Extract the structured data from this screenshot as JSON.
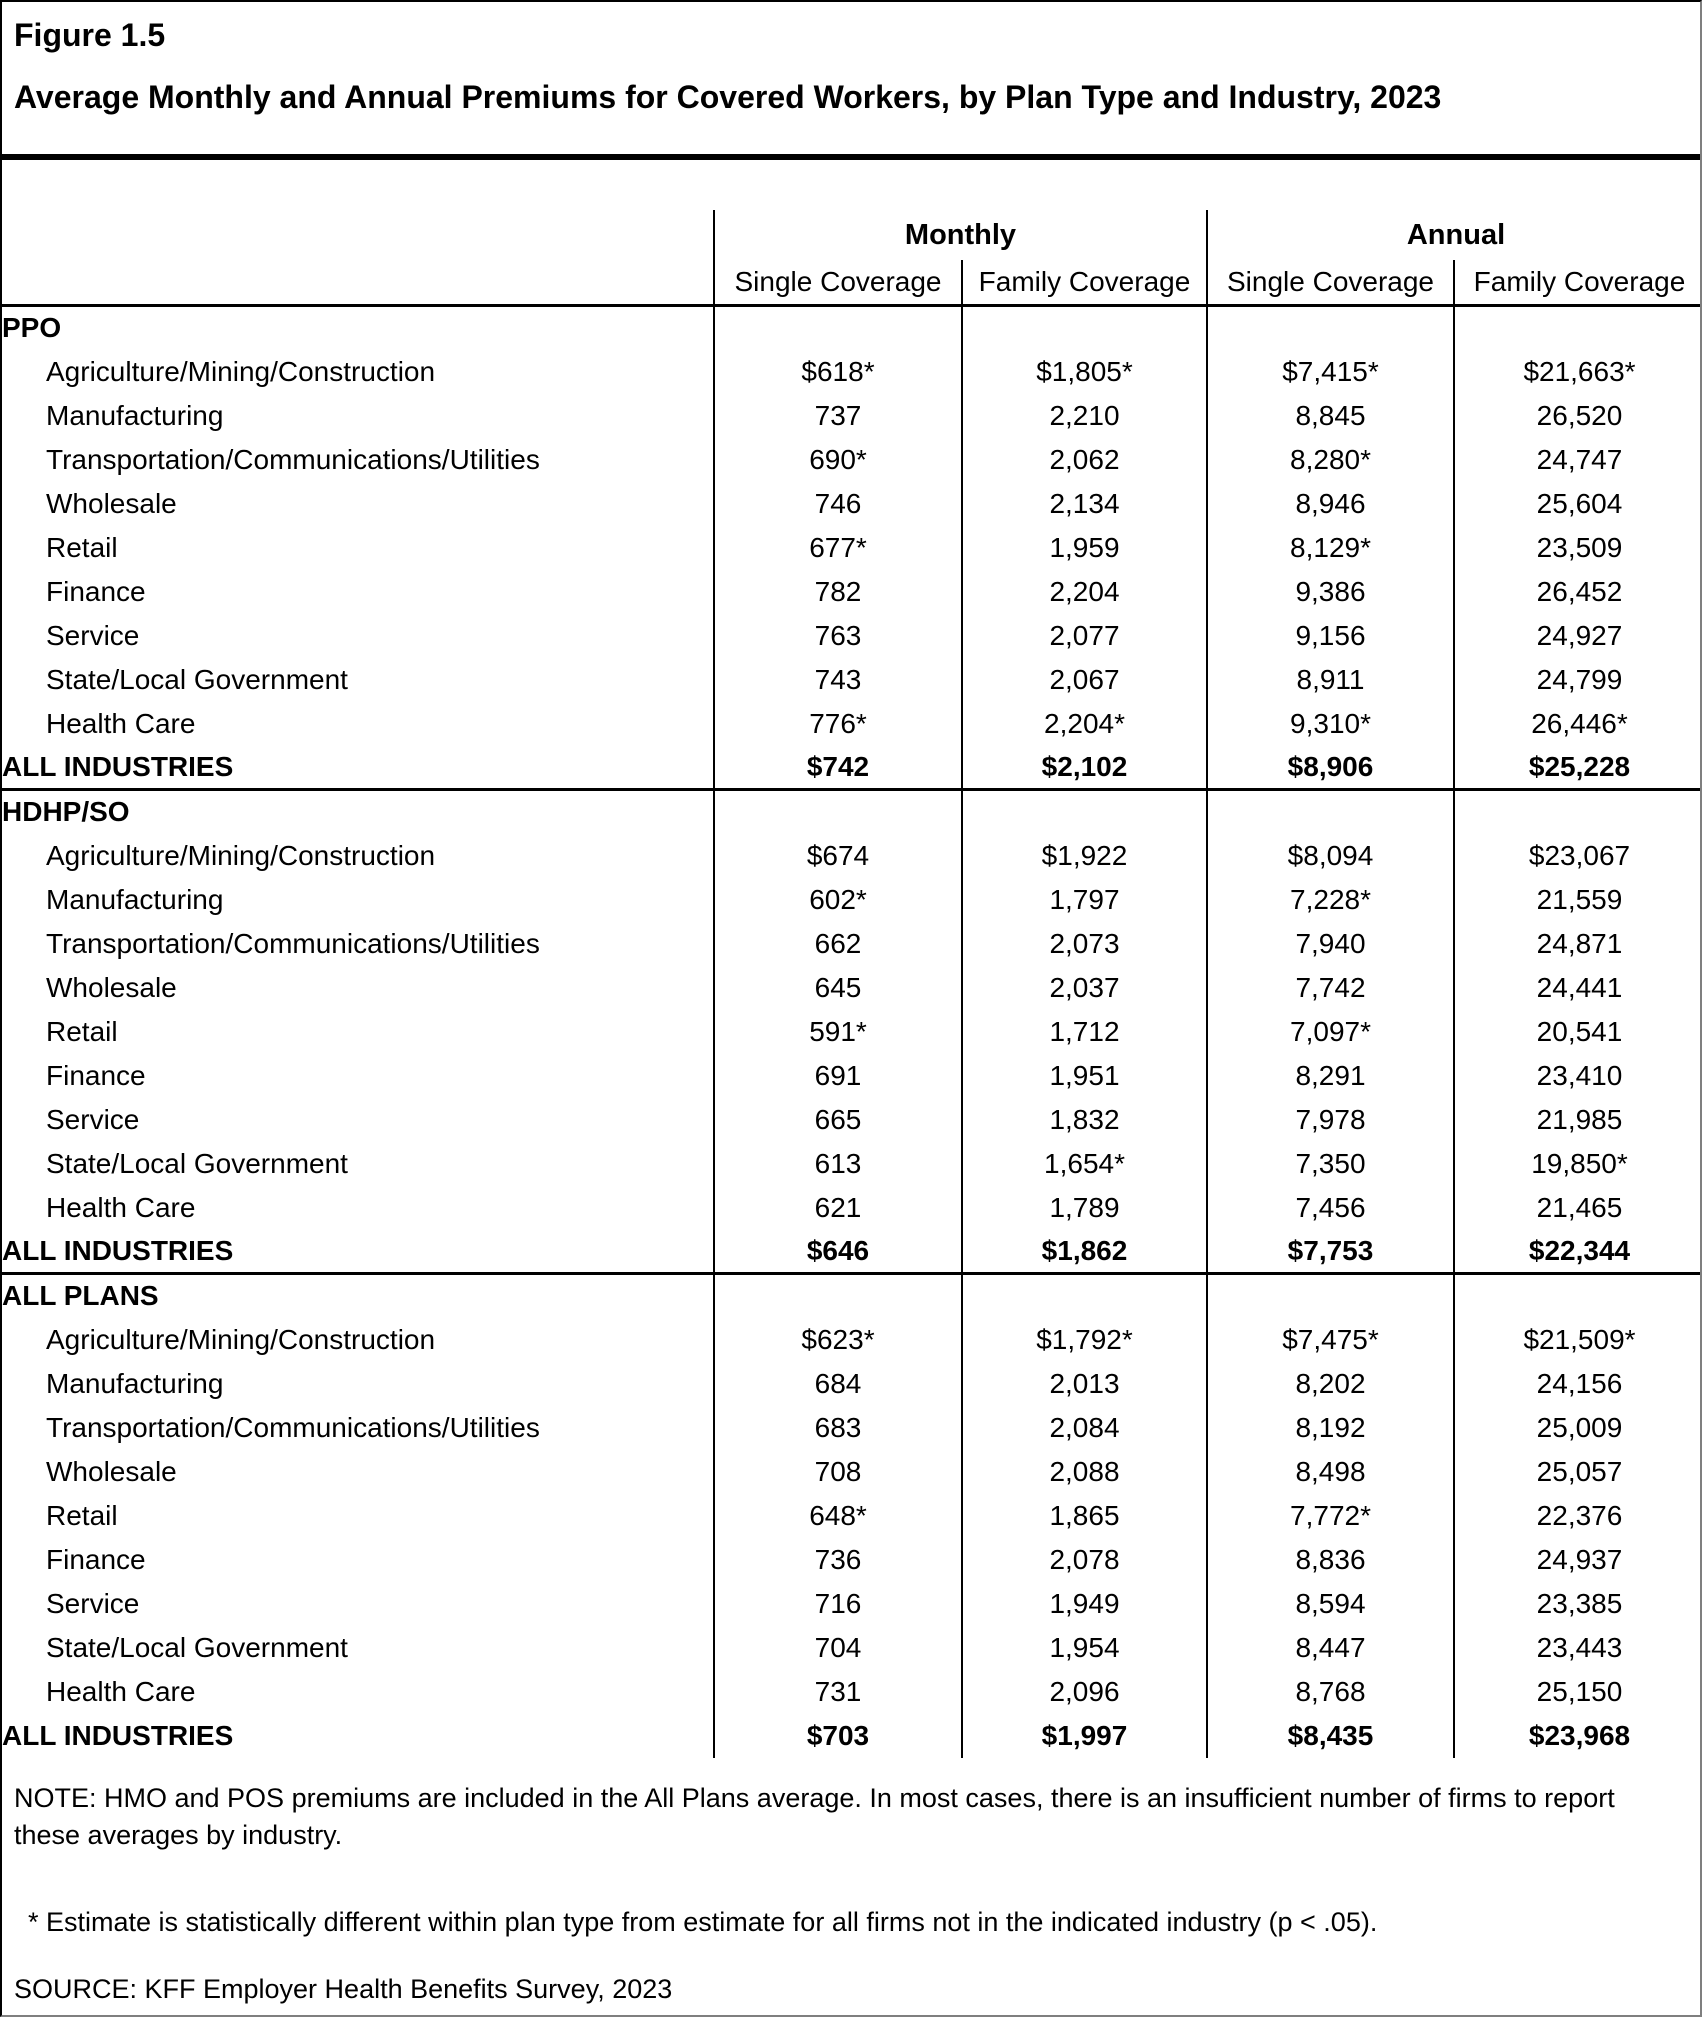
{
  "figure": {
    "label": "Figure 1.5",
    "title": "Average Monthly and Annual Premiums for Covered Workers, by Plan Type and Industry, 2023"
  },
  "table": {
    "col_groups": [
      {
        "label": "Monthly"
      },
      {
        "label": "Annual"
      }
    ],
    "sub_headers": [
      "Single Coverage",
      "Family Coverage",
      "Single Coverage",
      "Family Coverage"
    ],
    "sections": [
      {
        "name": "PPO",
        "rows": [
          {
            "label": "Agriculture/Mining/Construction",
            "values": [
              "$618*",
              "$1,805*",
              "$7,415*",
              "$21,663*"
            ]
          },
          {
            "label": "Manufacturing",
            "values": [
              "737",
              "2,210",
              "8,845",
              "26,520"
            ]
          },
          {
            "label": "Transportation/Communications/Utilities",
            "values": [
              "690*",
              "2,062",
              "8,280*",
              "24,747"
            ]
          },
          {
            "label": "Wholesale",
            "values": [
              "746",
              "2,134",
              "8,946",
              "25,604"
            ]
          },
          {
            "label": "Retail",
            "values": [
              "677*",
              "1,959",
              "8,129*",
              "23,509"
            ]
          },
          {
            "label": "Finance",
            "values": [
              "782",
              "2,204",
              "9,386",
              "26,452"
            ]
          },
          {
            "label": "Service",
            "values": [
              "763",
              "2,077",
              "9,156",
              "24,927"
            ]
          },
          {
            "label": "State/Local Government",
            "values": [
              "743",
              "2,067",
              "8,911",
              "24,799"
            ]
          },
          {
            "label": "Health Care",
            "values": [
              "776*",
              "2,204*",
              "9,310*",
              "26,446*"
            ]
          }
        ],
        "total": {
          "label": "ALL INDUSTRIES",
          "values": [
            "$742",
            "$2,102",
            "$8,906",
            "$25,228"
          ]
        }
      },
      {
        "name": "HDHP/SO",
        "rows": [
          {
            "label": "Agriculture/Mining/Construction",
            "values": [
              "$674",
              "$1,922",
              "$8,094",
              "$23,067"
            ]
          },
          {
            "label": "Manufacturing",
            "values": [
              "602*",
              "1,797",
              "7,228*",
              "21,559"
            ]
          },
          {
            "label": "Transportation/Communications/Utilities",
            "values": [
              "662",
              "2,073",
              "7,940",
              "24,871"
            ]
          },
          {
            "label": "Wholesale",
            "values": [
              "645",
              "2,037",
              "7,742",
              "24,441"
            ]
          },
          {
            "label": "Retail",
            "values": [
              "591*",
              "1,712",
              "7,097*",
              "20,541"
            ]
          },
          {
            "label": "Finance",
            "values": [
              "691",
              "1,951",
              "8,291",
              "23,410"
            ]
          },
          {
            "label": "Service",
            "values": [
              "665",
              "1,832",
              "7,978",
              "21,985"
            ]
          },
          {
            "label": "State/Local Government",
            "values": [
              "613",
              "1,654*",
              "7,350",
              "19,850*"
            ]
          },
          {
            "label": "Health Care",
            "values": [
              "621",
              "1,789",
              "7,456",
              "21,465"
            ]
          }
        ],
        "total": {
          "label": "ALL INDUSTRIES",
          "values": [
            "$646",
            "$1,862",
            "$7,753",
            "$22,344"
          ]
        }
      },
      {
        "name": "ALL PLANS",
        "rows": [
          {
            "label": "Agriculture/Mining/Construction",
            "values": [
              "$623*",
              "$1,792*",
              "$7,475*",
              "$21,509*"
            ]
          },
          {
            "label": "Manufacturing",
            "values": [
              "684",
              "2,013",
              "8,202",
              "24,156"
            ]
          },
          {
            "label": "Transportation/Communications/Utilities",
            "values": [
              "683",
              "2,084",
              "8,192",
              "25,009"
            ]
          },
          {
            "label": "Wholesale",
            "values": [
              "708",
              "2,088",
              "8,498",
              "25,057"
            ]
          },
          {
            "label": "Retail",
            "values": [
              "648*",
              "1,865",
              "7,772*",
              "22,376"
            ]
          },
          {
            "label": "Finance",
            "values": [
              "736",
              "2,078",
              "8,836",
              "24,937"
            ]
          },
          {
            "label": "Service",
            "values": [
              "716",
              "1,949",
              "8,594",
              "23,385"
            ]
          },
          {
            "label": "State/Local Government",
            "values": [
              "704",
              "1,954",
              "8,447",
              "23,443"
            ]
          },
          {
            "label": "Health Care",
            "values": [
              "731",
              "2,096",
              "8,768",
              "25,150"
            ]
          }
        ],
        "total": {
          "label": "ALL INDUSTRIES",
          "values": [
            "$703",
            "$1,997",
            "$8,435",
            "$23,968"
          ]
        }
      }
    ]
  },
  "notes": {
    "note": "NOTE: HMO and POS premiums are included in the All Plans average. In most cases, there is an insufficient number of firms to report these averages by industry.",
    "asterisk": "* Estimate is statistically different within plan type from estimate for all firms not in the indicated industry (p < .05).",
    "source": "SOURCE: KFF Employer Health Benefits Survey, 2023"
  },
  "colors": {
    "text": "#000000",
    "background": "#ffffff",
    "rule": "#000000"
  }
}
